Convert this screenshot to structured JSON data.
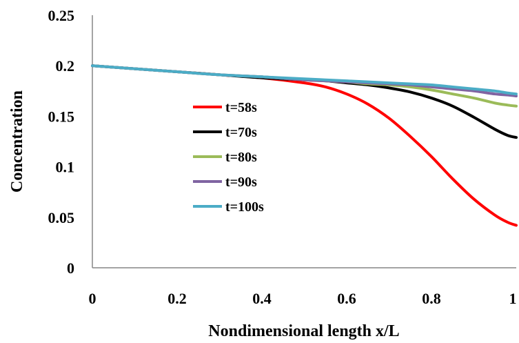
{
  "chart_data": {
    "type": "line",
    "xlabel": "Nondimensional length x/L",
    "ylabel": "Concentration",
    "xlim": [
      0,
      1
    ],
    "ylim": [
      0,
      0.25
    ],
    "x_ticks": [
      0,
      0.2,
      0.4,
      0.6,
      0.8,
      1
    ],
    "x_tick_labels": [
      "0",
      "0.2",
      "0.4",
      "0.6",
      "0.8",
      "1"
    ],
    "y_ticks": [
      0,
      0.05,
      0.1,
      0.15,
      0.2,
      0.25
    ],
    "y_tick_labels": [
      "0",
      "0.05",
      "0.1",
      "0.15",
      "0.2",
      "0.25"
    ],
    "grid": false,
    "legend_position": "center-left",
    "x": [
      0,
      0.1,
      0.2,
      0.3,
      0.4,
      0.5,
      0.55,
      0.6,
      0.65,
      0.7,
      0.75,
      0.8,
      0.85,
      0.9,
      0.95,
      0.98,
      1
    ],
    "series": [
      {
        "name": "t=58s",
        "color": "#ff0000",
        "values": [
          0.2,
          0.197,
          0.194,
          0.191,
          0.188,
          0.183,
          0.179,
          0.172,
          0.162,
          0.148,
          0.13,
          0.11,
          0.088,
          0.068,
          0.052,
          0.045,
          0.042
        ]
      },
      {
        "name": "t=70s",
        "color": "#000000",
        "values": [
          0.2,
          0.197,
          0.194,
          0.191,
          0.188,
          0.186,
          0.185,
          0.183,
          0.181,
          0.178,
          0.174,
          0.168,
          0.16,
          0.149,
          0.137,
          0.131,
          0.129
        ]
      },
      {
        "name": "t=80s",
        "color": "#9bbb59",
        "values": [
          0.2,
          0.197,
          0.194,
          0.191,
          0.189,
          0.186,
          0.185,
          0.184,
          0.182,
          0.181,
          0.179,
          0.176,
          0.172,
          0.168,
          0.163,
          0.161,
          0.16
        ]
      },
      {
        "name": "t=90s",
        "color": "#8064a2",
        "values": [
          0.2,
          0.197,
          0.194,
          0.191,
          0.189,
          0.186,
          0.185,
          0.184,
          0.183,
          0.182,
          0.181,
          0.179,
          0.177,
          0.175,
          0.172,
          0.171,
          0.17
        ]
      },
      {
        "name": "t=100s",
        "color": "#4bacc6",
        "values": [
          0.2,
          0.197,
          0.194,
          0.191,
          0.189,
          0.187,
          0.186,
          0.185,
          0.184,
          0.183,
          0.182,
          0.181,
          0.179,
          0.177,
          0.175,
          0.173,
          0.172
        ]
      }
    ]
  }
}
